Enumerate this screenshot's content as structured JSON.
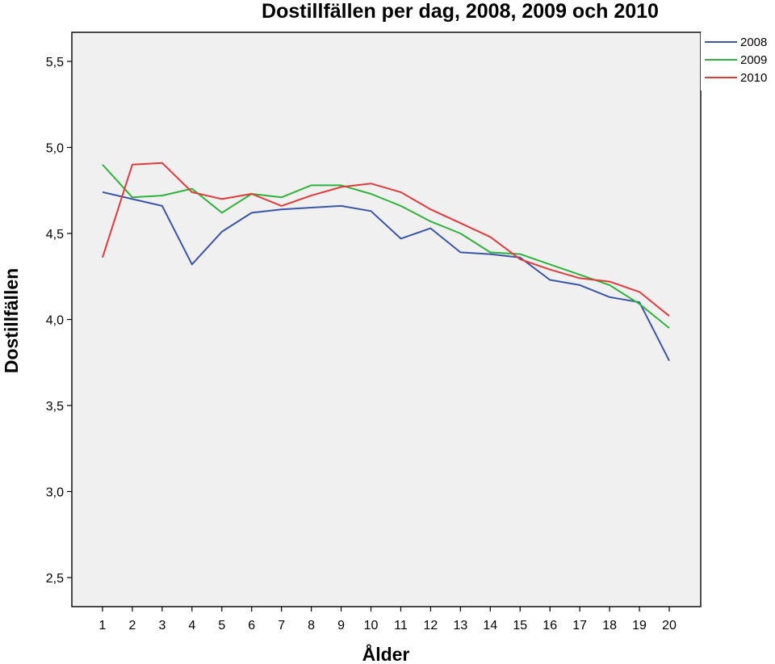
{
  "chart_data": {
    "type": "line",
    "title": "Dostillfällen per dag, 2008, 2009 och 2010",
    "xlabel": "Ålder",
    "ylabel": "Dostillfällen",
    "x": [
      1,
      2,
      3,
      4,
      5,
      6,
      7,
      8,
      9,
      10,
      11,
      12,
      13,
      14,
      15,
      16,
      17,
      18,
      19,
      20
    ],
    "ylim": [
      2.35,
      5.67
    ],
    "yticks": [
      2.5,
      3.0,
      3.5,
      4.0,
      4.5,
      5.0,
      5.5
    ],
    "ytick_labels": [
      "2,5",
      "3,0",
      "3,5",
      "4,0",
      "4,5",
      "5,0",
      "5,5"
    ],
    "grid": false,
    "legend_position": "top-right",
    "series": [
      {
        "name": "2008",
        "color": "#3b55a8",
        "values": [
          4.74,
          4.7,
          4.66,
          4.32,
          4.51,
          4.62,
          4.64,
          4.65,
          4.66,
          4.63,
          4.47,
          4.53,
          4.39,
          4.38,
          4.36,
          4.23,
          4.2,
          4.13,
          4.1,
          3.76
        ]
      },
      {
        "name": "2009",
        "color": "#2eb33c",
        "values": [
          4.9,
          4.71,
          4.72,
          4.76,
          4.62,
          4.73,
          4.71,
          4.78,
          4.78,
          4.73,
          4.66,
          4.57,
          4.5,
          4.39,
          4.38,
          4.32,
          4.26,
          4.2,
          4.09,
          3.95
        ]
      },
      {
        "name": "2010",
        "color": "#e03c3c",
        "values": [
          4.36,
          4.9,
          4.91,
          4.74,
          4.7,
          4.73,
          4.66,
          4.72,
          4.77,
          4.79,
          4.74,
          4.64,
          4.56,
          4.48,
          4.35,
          4.29,
          4.24,
          4.22,
          4.16,
          4.02
        ]
      }
    ]
  }
}
